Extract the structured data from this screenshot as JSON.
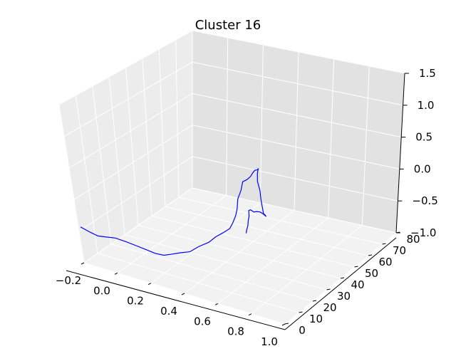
{
  "chart_data": {
    "type": "line3d",
    "title": "Cluster 16",
    "xlabel": "",
    "ylabel": "",
    "zlabel": "",
    "xlim": [
      -0.2,
      1.0
    ],
    "ylim": [
      0,
      80
    ],
    "zlim": [
      -1.0,
      1.5
    ],
    "grid": true,
    "x_ticks": [
      "−0.2",
      "0.0",
      "0.2",
      "0.4",
      "0.6",
      "0.8",
      "1.0"
    ],
    "y_ticks": [
      "0",
      "10",
      "20",
      "30",
      "40",
      "50",
      "60",
      "70",
      "80"
    ],
    "z_ticks": [
      "−1.0",
      "−0.5",
      "0.0",
      "0.5",
      "1.0",
      "1.5"
    ],
    "series": [
      {
        "color": "#0000ff",
        "points": [
          [
            0.01,
            0,
            -0.57
          ],
          [
            0.06,
            0,
            -0.61
          ],
          [
            0.11,
            0,
            -0.64
          ],
          [
            0.15,
            0,
            -0.62
          ],
          [
            0.21,
            0,
            -0.59
          ],
          [
            0.27,
            0,
            -0.6
          ],
          [
            0.33,
            0,
            -0.62
          ],
          [
            0.39,
            0,
            -0.64
          ],
          [
            0.44,
            0,
            -0.66
          ],
          [
            0.49,
            0,
            -0.65
          ],
          [
            0.53,
            0,
            -0.6
          ],
          [
            0.59,
            0,
            -0.52
          ],
          [
            0.64,
            0,
            -0.46
          ],
          [
            0.69,
            0,
            -0.33
          ],
          [
            0.75,
            0,
            -0.2
          ],
          [
            0.79,
            0,
            -0.07
          ],
          [
            0.83,
            0,
            0.03
          ],
          [
            0.87,
            0,
            0.14
          ],
          [
            0.89,
            0,
            0.27
          ],
          [
            0.905,
            0,
            0.4
          ],
          [
            0.913,
            0,
            0.52
          ],
          [
            0.917,
            0,
            0.7
          ],
          [
            0.935,
            0,
            0.86
          ],
          [
            0.945,
            0,
            1.02
          ],
          [
            0.97,
            0,
            1.08
          ],
          [
            0.99,
            0,
            1.15
          ],
          [
            1.002,
            0,
            1.22
          ],
          [
            1.015,
            0,
            1.28
          ],
          [
            1.03,
            0,
            1.3
          ],
          [
            1.035,
            0,
            1.33
          ],
          [
            1.03,
            0,
            1.24
          ],
          [
            1.03,
            0,
            1.1
          ],
          [
            1.045,
            0,
            0.95
          ],
          [
            1.05,
            0,
            0.8
          ],
          [
            1.058,
            0,
            0.68
          ],
          [
            1.065,
            0,
            0.57
          ],
          [
            1.075,
            0,
            0.55
          ],
          [
            1.08,
            0,
            0.53
          ],
          [
            1.065,
            0,
            0.56
          ],
          [
            1.045,
            0,
            0.58
          ],
          [
            1.025,
            0,
            0.57
          ],
          [
            1.01,
            0,
            0.55
          ],
          [
            0.99,
            0,
            0.57
          ],
          [
            0.98,
            0,
            0.55
          ],
          [
            0.982,
            0,
            0.45
          ],
          [
            0.977,
            0,
            0.37
          ],
          [
            0.975,
            0,
            0.28
          ],
          [
            0.968,
            0,
            0.2
          ],
          [
            0.965,
            0,
            0.14
          ]
        ]
      }
    ]
  }
}
